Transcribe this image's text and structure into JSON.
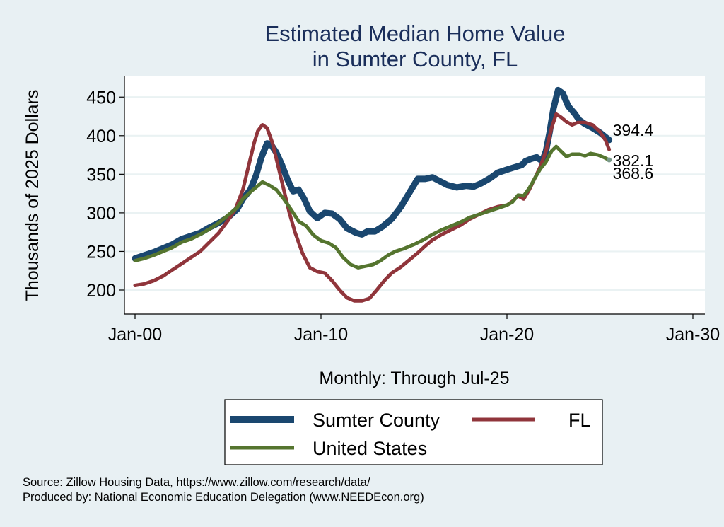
{
  "chart_data": {
    "type": "line",
    "title": [
      "Estimated Median Home Value",
      "in Sumter County, FL"
    ],
    "xlabel": "Monthly: Through Jul-25",
    "ylabel": "Thousands of 2025 Dollars",
    "xlim": [
      2000,
      2030.6
    ],
    "ylim": [
      172,
      477
    ],
    "x_ticks": [
      {
        "value": 2000,
        "label": "Jan-00"
      },
      {
        "value": 2010,
        "label": "Jan-10"
      },
      {
        "value": 2020,
        "label": "Jan-20"
      },
      {
        "value": 2030,
        "label": "Jan-30"
      }
    ],
    "y_ticks": [
      200,
      250,
      300,
      350,
      400,
      450
    ],
    "grid": true,
    "legend_position": "bottom",
    "series": [
      {
        "name": "Sumter County",
        "color": "#1a476f",
        "end_label": "394.4",
        "points": [
          [
            2000.0,
            241
          ],
          [
            2000.5,
            245
          ],
          [
            2001.0,
            249
          ],
          [
            2001.5,
            254
          ],
          [
            2002.0,
            259
          ],
          [
            2002.5,
            266
          ],
          [
            2003.0,
            270
          ],
          [
            2003.5,
            274
          ],
          [
            2004.0,
            281
          ],
          [
            2004.5,
            287
          ],
          [
            2005.0,
            294
          ],
          [
            2005.5,
            305
          ],
          [
            2005.8,
            318
          ],
          [
            2006.2,
            330
          ],
          [
            2006.5,
            348
          ],
          [
            2006.8,
            372
          ],
          [
            2007.1,
            390
          ],
          [
            2007.3,
            389
          ],
          [
            2007.6,
            378
          ],
          [
            2007.9,
            362
          ],
          [
            2008.2,
            343
          ],
          [
            2008.5,
            328
          ],
          [
            2008.8,
            330
          ],
          [
            2009.1,
            318
          ],
          [
            2009.4,
            302
          ],
          [
            2009.8,
            293
          ],
          [
            2010.2,
            300
          ],
          [
            2010.6,
            299
          ],
          [
            2011.0,
            292
          ],
          [
            2011.4,
            280
          ],
          [
            2011.9,
            274
          ],
          [
            2012.2,
            272
          ],
          [
            2012.5,
            276
          ],
          [
            2012.9,
            276
          ],
          [
            2013.3,
            282
          ],
          [
            2013.8,
            292
          ],
          [
            2014.3,
            308
          ],
          [
            2014.8,
            328
          ],
          [
            2015.2,
            344
          ],
          [
            2015.6,
            344
          ],
          [
            2016.0,
            346
          ],
          [
            2016.4,
            341
          ],
          [
            2016.8,
            336
          ],
          [
            2017.3,
            333
          ],
          [
            2017.8,
            335
          ],
          [
            2018.2,
            334
          ],
          [
            2018.6,
            338
          ],
          [
            2019.1,
            345
          ],
          [
            2019.5,
            352
          ],
          [
            2020.0,
            356
          ],
          [
            2020.4,
            359
          ],
          [
            2020.8,
            362
          ],
          [
            2021.0,
            367
          ],
          [
            2021.3,
            370
          ],
          [
            2021.6,
            372
          ],
          [
            2021.9,
            367
          ],
          [
            2022.1,
            380
          ],
          [
            2022.3,
            405
          ],
          [
            2022.5,
            435
          ],
          [
            2022.75,
            459
          ],
          [
            2023.0,
            455
          ],
          [
            2023.3,
            438
          ],
          [
            2023.6,
            430
          ],
          [
            2023.9,
            420
          ],
          [
            2024.2,
            415
          ],
          [
            2024.6,
            410
          ],
          [
            2025.0,
            404
          ],
          [
            2025.5,
            394.4
          ]
        ]
      },
      {
        "name": "FL",
        "color": "#90353b",
        "end_label": "382.1",
        "points": [
          [
            2000.0,
            206
          ],
          [
            2000.5,
            208
          ],
          [
            2001.0,
            212
          ],
          [
            2001.5,
            218
          ],
          [
            2002.0,
            226
          ],
          [
            2002.5,
            234
          ],
          [
            2003.0,
            242
          ],
          [
            2003.5,
            250
          ],
          [
            2004.0,
            262
          ],
          [
            2004.5,
            274
          ],
          [
            2005.0,
            290
          ],
          [
            2005.4,
            305
          ],
          [
            2005.8,
            330
          ],
          [
            2006.1,
            360
          ],
          [
            2006.4,
            390
          ],
          [
            2006.6,
            406
          ],
          [
            2006.85,
            414
          ],
          [
            2007.1,
            410
          ],
          [
            2007.4,
            390
          ],
          [
            2007.7,
            360
          ],
          [
            2008.0,
            330
          ],
          [
            2008.3,
            300
          ],
          [
            2008.6,
            275
          ],
          [
            2009.0,
            248
          ],
          [
            2009.4,
            229
          ],
          [
            2009.8,
            224
          ],
          [
            2010.2,
            222
          ],
          [
            2010.6,
            212
          ],
          [
            2011.0,
            200
          ],
          [
            2011.4,
            190
          ],
          [
            2011.8,
            186
          ],
          [
            2012.2,
            186
          ],
          [
            2012.6,
            189
          ],
          [
            2013.0,
            200
          ],
          [
            2013.4,
            212
          ],
          [
            2013.8,
            222
          ],
          [
            2014.3,
            230
          ],
          [
            2014.8,
            240
          ],
          [
            2015.2,
            248
          ],
          [
            2015.6,
            257
          ],
          [
            2016.0,
            265
          ],
          [
            2016.5,
            272
          ],
          [
            2017.0,
            278
          ],
          [
            2017.5,
            284
          ],
          [
            2018.0,
            292
          ],
          [
            2018.5,
            298
          ],
          [
            2019.0,
            304
          ],
          [
            2019.5,
            308
          ],
          [
            2020.0,
            310
          ],
          [
            2020.3,
            315
          ],
          [
            2020.6,
            322
          ],
          [
            2020.9,
            318
          ],
          [
            2021.2,
            330
          ],
          [
            2021.5,
            345
          ],
          [
            2021.8,
            360
          ],
          [
            2022.1,
            380
          ],
          [
            2022.4,
            410
          ],
          [
            2022.65,
            428
          ],
          [
            2022.9,
            424
          ],
          [
            2023.2,
            418
          ],
          [
            2023.5,
            414
          ],
          [
            2023.8,
            417
          ],
          [
            2024.2,
            417
          ],
          [
            2024.6,
            414
          ],
          [
            2025.0,
            405
          ],
          [
            2025.3,
            394
          ],
          [
            2025.5,
            382.1
          ]
        ]
      },
      {
        "name": "United States",
        "color": "#55752f",
        "end_label": "368.6",
        "points": [
          [
            2000.0,
            238
          ],
          [
            2000.5,
            241
          ],
          [
            2001.0,
            245
          ],
          [
            2001.5,
            250
          ],
          [
            2002.0,
            255
          ],
          [
            2002.5,
            262
          ],
          [
            2003.0,
            266
          ],
          [
            2003.5,
            272
          ],
          [
            2004.0,
            279
          ],
          [
            2004.5,
            287
          ],
          [
            2005.0,
            297
          ],
          [
            2005.5,
            307
          ],
          [
            2005.8,
            318
          ],
          [
            2006.2,
            327
          ],
          [
            2006.5,
            333
          ],
          [
            2006.85,
            340
          ],
          [
            2007.2,
            336
          ],
          [
            2007.6,
            330
          ],
          [
            2008.0,
            318
          ],
          [
            2008.4,
            304
          ],
          [
            2008.8,
            289
          ],
          [
            2009.2,
            283
          ],
          [
            2009.6,
            271
          ],
          [
            2010.0,
            264
          ],
          [
            2010.4,
            261
          ],
          [
            2010.8,
            255
          ],
          [
            2011.2,
            242
          ],
          [
            2011.6,
            233
          ],
          [
            2012.0,
            229
          ],
          [
            2012.4,
            231
          ],
          [
            2012.8,
            233
          ],
          [
            2013.2,
            238
          ],
          [
            2013.6,
            245
          ],
          [
            2014.0,
            250
          ],
          [
            2014.5,
            254
          ],
          [
            2015.0,
            259
          ],
          [
            2015.5,
            265
          ],
          [
            2016.0,
            272
          ],
          [
            2016.5,
            278
          ],
          [
            2017.0,
            283
          ],
          [
            2017.5,
            288
          ],
          [
            2018.0,
            294
          ],
          [
            2018.5,
            298
          ],
          [
            2019.0,
            302
          ],
          [
            2019.5,
            306
          ],
          [
            2020.0,
            310
          ],
          [
            2020.3,
            314
          ],
          [
            2020.6,
            323
          ],
          [
            2020.9,
            322
          ],
          [
            2021.2,
            332
          ],
          [
            2021.5,
            345
          ],
          [
            2021.8,
            357
          ],
          [
            2022.1,
            366
          ],
          [
            2022.4,
            380
          ],
          [
            2022.65,
            386
          ],
          [
            2022.9,
            380
          ],
          [
            2023.2,
            373
          ],
          [
            2023.5,
            376
          ],
          [
            2023.9,
            376
          ],
          [
            2024.2,
            374
          ],
          [
            2024.5,
            377
          ],
          [
            2024.9,
            375
          ],
          [
            2025.2,
            372
          ],
          [
            2025.5,
            368.6
          ]
        ]
      }
    ],
    "legend": [
      {
        "name": "Sumter County",
        "color": "#1a476f"
      },
      {
        "name": "FL",
        "color": "#90353b"
      },
      {
        "name": "United States",
        "color": "#55752f"
      }
    ]
  },
  "footer": {
    "source": "Source: Zillow Housing Data, https://www.zillow.com/research/data/",
    "produced_by": "Produced by: National Economic Education Delegation (www.NEEDEcon.org)"
  }
}
